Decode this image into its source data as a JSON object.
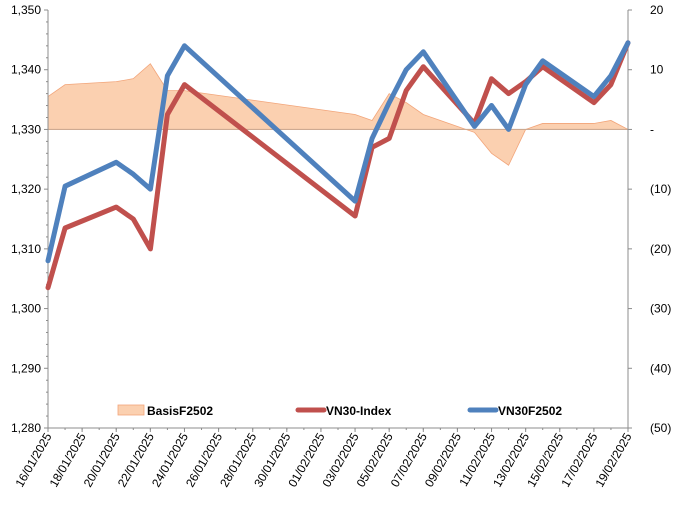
{
  "chart_data": {
    "type": "line",
    "title": "",
    "xlabel": "",
    "ylabel": "",
    "ylim": [
      1280,
      1350
    ],
    "y_ticks": [
      1280,
      1290,
      1300,
      1310,
      1320,
      1330,
      1340,
      1350
    ],
    "y_tick_labels": [
      "1,280",
      "1,290",
      "1,300",
      "1,310",
      "1,320",
      "1,330",
      "1,340",
      "1,350"
    ],
    "y2lim": [
      -50,
      20
    ],
    "y2_ticks": [
      -50,
      -40,
      -30,
      -20,
      -10,
      0,
      10,
      20
    ],
    "y2_tick_labels": [
      "(50)",
      "(40)",
      "(30)",
      "(20)",
      "(10)",
      "-",
      "10",
      "20"
    ],
    "x_tick_labels": [
      "16/01/2025",
      "18/01/2025",
      "20/01/2025",
      "22/01/2025",
      "24/01/2025",
      "26/01/2025",
      "28/01/2025",
      "30/01/2025",
      "01/02/2025",
      "03/02/2025",
      "05/02/2025",
      "07/02/2025",
      "09/02/2025",
      "11/02/2025",
      "13/02/2025",
      "15/02/2025",
      "17/02/2025",
      "19/02/2025"
    ],
    "x": [
      "16/01/2025",
      "17/01/2025",
      "20/01/2025",
      "21/01/2025",
      "22/01/2025",
      "23/01/2025",
      "24/01/2025",
      "03/02/2025",
      "04/02/2025",
      "05/02/2025",
      "06/02/2025",
      "07/02/2025",
      "10/02/2025",
      "11/02/2025",
      "12/02/2025",
      "13/02/2025",
      "14/02/2025",
      "17/02/2025",
      "18/02/2025",
      "19/02/2025"
    ],
    "series": [
      {
        "name": "BasisF2502",
        "kind": "area",
        "axis": "right",
        "color": "#fbd0b0",
        "stroke": "#f2a57a",
        "values": [
          5.5,
          7.5,
          8,
          8.5,
          11,
          6.5,
          6.5,
          2.5,
          1.5,
          6,
          4.5,
          2.5,
          -0.5,
          -4,
          -6,
          0,
          1,
          1,
          1.5,
          0
        ]
      },
      {
        "name": "VN30-Index",
        "kind": "line",
        "axis": "left",
        "color": "#c0504d",
        "values": [
          1303.5,
          1313.5,
          1317,
          1315,
          1310,
          1332.5,
          1337.5,
          1315.5,
          1327,
          1328.5,
          1336.5,
          1340.5,
          1331,
          1338.5,
          1336,
          1338,
          1340.5,
          1334.5,
          1337.5,
          1344.5
        ]
      },
      {
        "name": "VN30F2502",
        "kind": "line",
        "axis": "left",
        "color": "#4f81bd",
        "values": [
          1308,
          1320.5,
          1324.5,
          1322.5,
          1320,
          1339,
          1344,
          1318,
          1328.5,
          1334.5,
          1340,
          1343,
          1330.5,
          1334,
          1330,
          1337.5,
          1341.5,
          1335.5,
          1339,
          1344.5
        ]
      }
    ],
    "legend_position": "bottom",
    "grid": false
  }
}
